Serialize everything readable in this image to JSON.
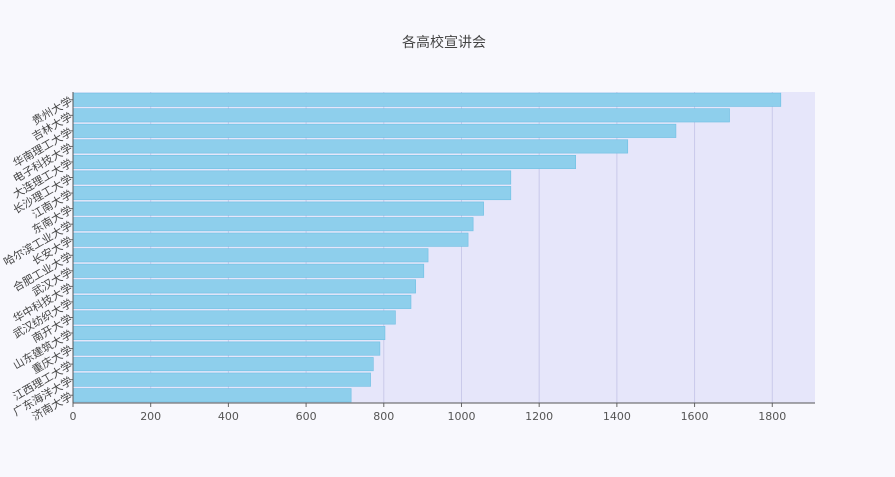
{
  "chart_data": {
    "type": "bar",
    "orientation": "horizontal",
    "title": "各高校宣讲会",
    "categories": [
      "贵州大学",
      "吉林大学",
      "华南理工大学",
      "电子科技大学",
      "大连理工大学",
      "长沙理工大学",
      "江南大学",
      "东南大学",
      "哈尔滨工业大学",
      "长安大学",
      "合肥工业大学",
      "武汉大学",
      "华中科技大学",
      "武汉纺织大学",
      "南开大学",
      "山东建筑大学",
      "重庆大学",
      "江西理工大学",
      "广东海洋大学",
      "济南大学"
    ],
    "values": [
      1822,
      1690,
      1552,
      1428,
      1294,
      1127,
      1127,
      1057,
      1030,
      1017,
      914,
      903,
      882,
      870,
      830,
      803,
      790,
      773,
      766,
      716
    ],
    "xlim": [
      0,
      1910
    ],
    "xticks": [
      0,
      200,
      400,
      600,
      800,
      1000,
      1200,
      1400,
      1600,
      1800
    ],
    "grid": true,
    "colors": {
      "bar": "#8ecfec",
      "bar_edge": "#6fbfe3",
      "plot_bg": "#e6e6fa",
      "grid": "#c9c9ea"
    }
  }
}
